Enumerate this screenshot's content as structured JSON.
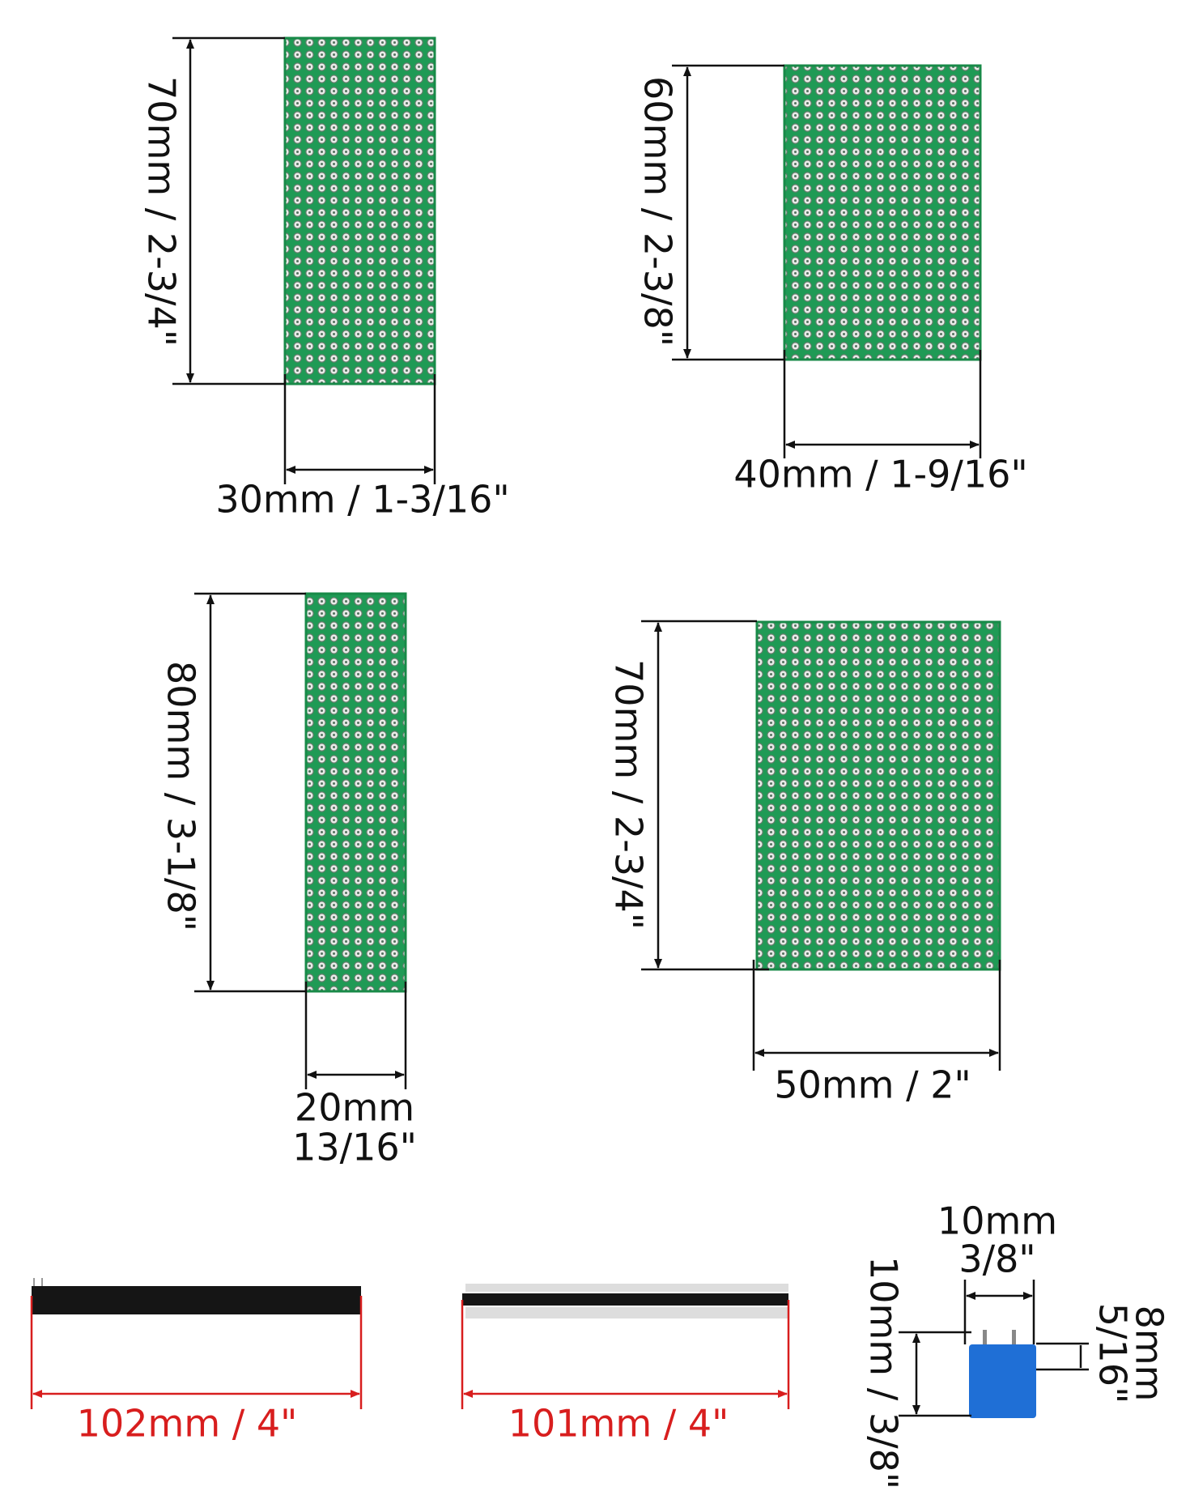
{
  "pcb_30x70": {
    "height_label": "70mm / 2-3/4\"",
    "width_label": "30mm / 1-3/16\""
  },
  "pcb_40x60": {
    "height_label": "60mm / 2-3/8\"",
    "width_label": "40mm / 1-9/16\""
  },
  "pcb_20x80": {
    "height_label": "80mm / 3-1/8\"",
    "width_label_lines": [
      "20mm",
      "13/16\""
    ]
  },
  "pcb_50x70": {
    "height_label": "70mm / 2-3/4\"",
    "width_label": "50mm / 2\""
  },
  "female_header": {
    "length_label": "102mm / 4\""
  },
  "male_header": {
    "length_label": "101mm / 4\""
  },
  "terminal_block": {
    "width_label_lines": [
      "10mm",
      "3/8\""
    ],
    "height_label": "10mm / 3/8\"",
    "pin_label_lines": [
      "8mm",
      "5/16\""
    ]
  }
}
